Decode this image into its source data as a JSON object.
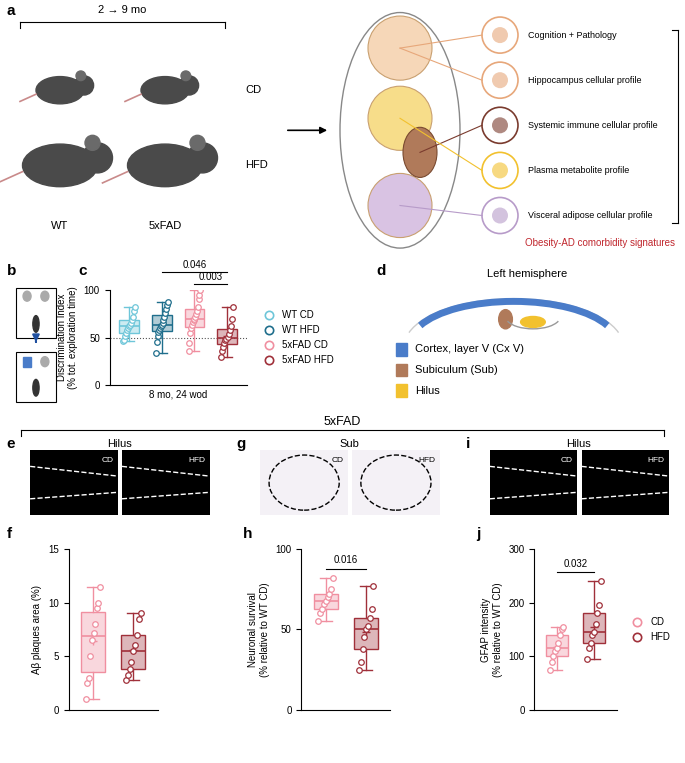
{
  "panel_a": {
    "panel": "a",
    "period": "2 → 9 mo",
    "diets": [
      "CD",
      "HFD"
    ],
    "genotypes": [
      "WT",
      "5xFAD"
    ],
    "readouts": [
      "Cognition + Pathology",
      "Hippocampus cellular profile",
      "Systemic immune cellular profile",
      "Plasma metabolite profile",
      "Visceral adipose cellular profile"
    ],
    "summary": "Obesity-AD comorbidity signatures",
    "summary_color": "#c0262d"
  },
  "panel_b": {
    "panel": "b"
  },
  "panel_d": {
    "panel": "d",
    "title": "Left hemisphere",
    "regions": [
      {
        "name": "Cortex, layer V (Cx V)",
        "color": "#4a7cc9"
      },
      {
        "name": "Subiculum (Sub)",
        "color": "#b07a5a"
      },
      {
        "name": "Hilus",
        "color": "#f2c12e"
      }
    ]
  },
  "group_title": "5xFAD",
  "images": [
    {
      "panel": "e",
      "region": "Hilus",
      "conditions": [
        "CD",
        "HFD"
      ],
      "color": "#000000"
    },
    {
      "panel": "g",
      "region": "Sub",
      "conditions": [
        "CD",
        "HFD"
      ],
      "color": "#f4f1f6"
    },
    {
      "panel": "i",
      "region": "Hilus",
      "conditions": [
        "CD",
        "HFD"
      ],
      "color": "#000000"
    }
  ],
  "chart_data": [
    {
      "panel": "c",
      "type": "box",
      "y_label": "Discrimination Index\n(% tot. exploration time)",
      "x_label": "8 mo, 24 wod",
      "ylim": [
        0,
        100
      ],
      "yticks": [
        0,
        50,
        100
      ],
      "reference_line": 50,
      "tick_labels": "y",
      "legend": "right",
      "series": [
        {
          "name": "WT CD",
          "color": "#6ec6d9",
          "values": [
            46,
            48,
            52,
            55,
            58,
            60,
            62,
            63,
            65,
            68,
            72,
            78,
            82
          ]
        },
        {
          "name": "WT HFD",
          "color": "#1f6e8c",
          "values": [
            34,
            45,
            52,
            56,
            58,
            60,
            62,
            63,
            65,
            68,
            72,
            76,
            80,
            84,
            87
          ]
        },
        {
          "name": "5xFAD CD",
          "color": "#f08fa0",
          "values": [
            36,
            44,
            55,
            60,
            63,
            66,
            68,
            70,
            72,
            75,
            78,
            82,
            90,
            95,
            100
          ]
        },
        {
          "name": "5xFAD HFD",
          "color": "#a0303a",
          "values": [
            30,
            36,
            40,
            44,
            47,
            49,
            51,
            54,
            58,
            62,
            70,
            82
          ]
        }
      ],
      "comparisons": [
        {
          "between": [
            "WT HFD",
            "5xFAD HFD"
          ],
          "label": "0.046"
        },
        {
          "between": [
            "5xFAD CD",
            "5xFAD HFD"
          ],
          "label": "0.003"
        }
      ]
    },
    {
      "panel": "f",
      "type": "box",
      "y_label": "Aβ plaques area (%)",
      "ylim": [
        0,
        15
      ],
      "yticks": [
        0,
        5,
        10,
        15
      ],
      "tick_labels": "y",
      "series": [
        {
          "name": "CD",
          "color": "#f08fa0",
          "values": [
            1,
            2.5,
            3,
            5,
            6.5,
            7.2,
            8,
            9.5,
            10,
            11.5
          ]
        },
        {
          "name": "HFD",
          "color": "#a0303a",
          "values": [
            2.8,
            3.2,
            3.8,
            4.5,
            5.5,
            6,
            7,
            8.5,
            9
          ]
        }
      ],
      "comparisons": []
    },
    {
      "panel": "h",
      "type": "box",
      "y_label": "Neuronal survival\n(% relative to WT CD)",
      "ylim": [
        0,
        100
      ],
      "yticks": [
        0,
        50,
        100
      ],
      "tick_labels": "y",
      "series": [
        {
          "name": "CD",
          "color": "#f08fa0",
          "values": [
            55,
            60,
            63,
            66,
            68,
            70,
            72,
            75,
            82
          ]
        },
        {
          "name": "HFD",
          "color": "#a0303a",
          "values": [
            25,
            30,
            38,
            45,
            50,
            52,
            57,
            63,
            77
          ]
        }
      ],
      "comparisons": [
        {
          "between": [
            "CD",
            "HFD"
          ],
          "label": "0.016"
        }
      ]
    },
    {
      "panel": "j",
      "type": "box",
      "y_label": "GFAP intensity\n(% relative to WT CD)",
      "ylim": [
        0,
        300
      ],
      "yticks": [
        0,
        100,
        200,
        300
      ],
      "tick_labels": "y",
      "legend": "right",
      "series": [
        {
          "name": "CD",
          "color": "#f08fa0",
          "values": [
            75,
            90,
            100,
            110,
            115,
            125,
            140,
            150,
            155
          ]
        },
        {
          "name": "HFD",
          "color": "#a0303a",
          "values": [
            95,
            115,
            125,
            140,
            145,
            160,
            180,
            195,
            240
          ]
        }
      ],
      "comparisons": [
        {
          "between": [
            "CD",
            "HFD"
          ],
          "label": "0.032"
        }
      ]
    }
  ]
}
